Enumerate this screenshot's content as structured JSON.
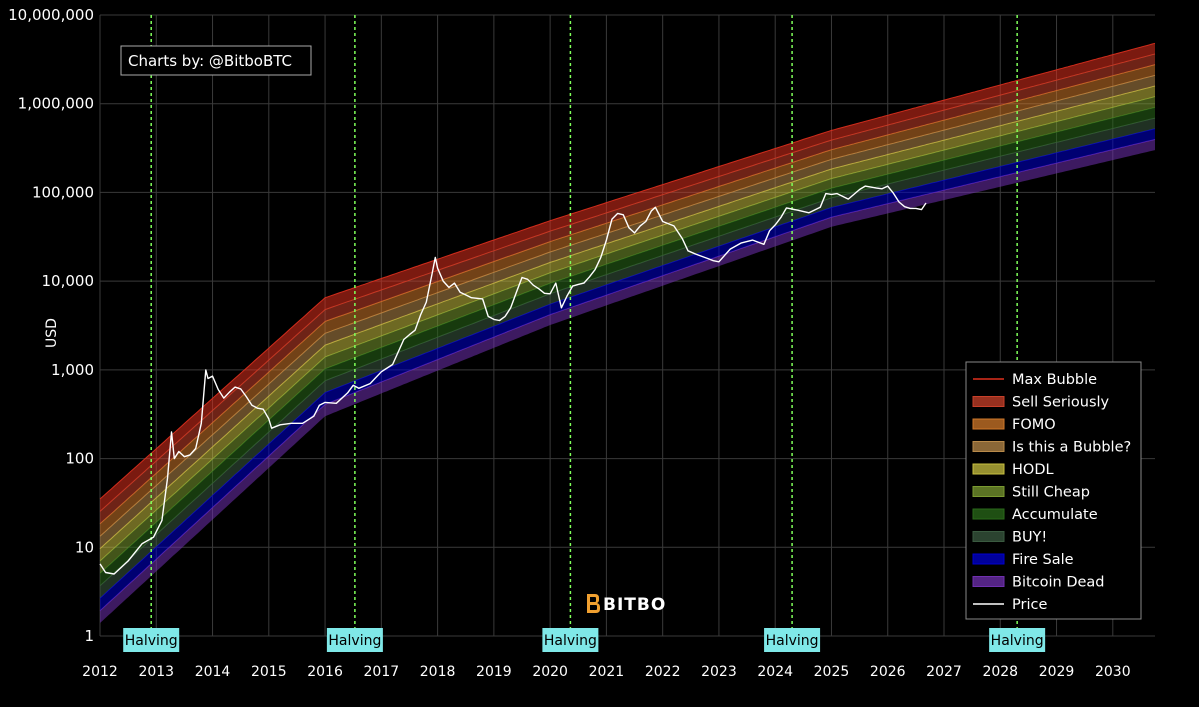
{
  "chart_data": {
    "type": "area",
    "title": "",
    "ylabel": "USD",
    "xlabel": "",
    "yscale": "log",
    "ylim": [
      1,
      10000000
    ],
    "xlim": [
      2012,
      2030.75
    ],
    "y_ticks": [
      {
        "value": 1,
        "label": "1"
      },
      {
        "value": 10,
        "label": "10"
      },
      {
        "value": 100,
        "label": "100"
      },
      {
        "value": 1000,
        "label": "1,000"
      },
      {
        "value": 10000,
        "label": "10,000"
      },
      {
        "value": 100000,
        "label": "100,000"
      },
      {
        "value": 1000000,
        "label": "1,000,000"
      },
      {
        "value": 10000000,
        "label": "10,000,000"
      }
    ],
    "x_ticks": [
      "2012",
      "2013",
      "2014",
      "2015",
      "2016",
      "2017",
      "2018",
      "2019",
      "2020",
      "2021",
      "2022",
      "2023",
      "2024",
      "2025",
      "2026",
      "2027",
      "2028",
      "2029",
      "2030"
    ],
    "grid": true,
    "legend_position": "bottom-right",
    "credit": "Charts by: @BitboBTC",
    "watermark": "BITBO",
    "halvings": [
      {
        "label": "Halving",
        "x": 2012.91
      },
      {
        "label": "Halving",
        "x": 2016.53
      },
      {
        "label": "Halving",
        "x": 2020.36
      },
      {
        "label": "Halving",
        "x": 2024.3
      },
      {
        "label": "Halving",
        "x": 2028.3
      }
    ],
    "bands_boundaries_sample_years": [
      2012.0,
      2016.0,
      2020.0,
      2025.0,
      2030.75
    ],
    "bands_boundaries_sample_values": [
      [
        1.4,
        300,
        3200,
        41000,
        300000
      ],
      [
        35,
        6500,
        48000,
        500000,
        4800000
      ]
    ],
    "series": [
      {
        "name": "Max Bubble",
        "color": "#e0301e"
      },
      {
        "name": "Sell Seriously",
        "color": "#c8402a"
      },
      {
        "name": "FOMO",
        "color": "#d0782a"
      },
      {
        "name": "Is this a Bubble?",
        "color": "#b88a4a"
      },
      {
        "name": "HODL",
        "color": "#c8c040"
      },
      {
        "name": "Still Cheap",
        "color": "#7a9a30"
      },
      {
        "name": "Accumulate",
        "color": "#2a6a1a"
      },
      {
        "name": "BUY!",
        "color": "#3a5a40"
      },
      {
        "name": "Fire Sale",
        "color": "#0000d0"
      },
      {
        "name": "Bitcoin Dead",
        "color": "#7030b0"
      },
      {
        "name": "Price",
        "color": "#ffffff",
        "x": [
          2012.0,
          2012.1,
          2012.25,
          2012.5,
          2012.75,
          2012.95,
          2013.1,
          2013.2,
          2013.27,
          2013.32,
          2013.4,
          2013.5,
          2013.6,
          2013.7,
          2013.8,
          2013.88,
          2013.92,
          2014.0,
          2014.1,
          2014.2,
          2014.3,
          2014.4,
          2014.5,
          2014.6,
          2014.7,
          2014.8,
          2014.9,
          2015.0,
          2015.05,
          2015.2,
          2015.4,
          2015.6,
          2015.8,
          2015.9,
          2016.0,
          2016.2,
          2016.4,
          2016.5,
          2016.6,
          2016.8,
          2017.0,
          2017.2,
          2017.4,
          2017.5,
          2017.6,
          2017.7,
          2017.8,
          2017.9,
          2017.96,
          2018.0,
          2018.1,
          2018.2,
          2018.3,
          2018.4,
          2018.5,
          2018.6,
          2018.7,
          2018.8,
          2018.9,
          2019.0,
          2019.1,
          2019.2,
          2019.3,
          2019.4,
          2019.5,
          2019.6,
          2019.7,
          2019.8,
          2019.9,
          2020.0,
          2020.1,
          2020.2,
          2020.3,
          2020.4,
          2020.5,
          2020.6,
          2020.7,
          2020.8,
          2020.9,
          2021.0,
          2021.1,
          2021.2,
          2021.3,
          2021.4,
          2021.5,
          2021.6,
          2021.7,
          2021.8,
          2021.87,
          2022.0,
          2022.2,
          2022.35,
          2022.45,
          2022.6,
          2022.8,
          2022.9,
          2023.0,
          2023.2,
          2023.4,
          2023.6,
          2023.8,
          2023.9,
          2024.0,
          2024.1,
          2024.2,
          2024.4,
          2024.6,
          2024.8,
          2024.9,
          2025.0,
          2025.1,
          2025.3,
          2025.5,
          2025.6,
          2025.8,
          2025.9,
          2026.0,
          2026.1,
          2026.2,
          2026.3,
          2026.4,
          2026.5,
          2026.6,
          2026.68
        ],
        "y": [
          6.5,
          5.2,
          5.0,
          7.0,
          11,
          13,
          20,
          60,
          200,
          100,
          120,
          105,
          110,
          130,
          250,
          1000,
          800,
          850,
          600,
          480,
          560,
          640,
          610,
          500,
          400,
          370,
          360,
          280,
          220,
          240,
          250,
          250,
          300,
          400,
          430,
          420,
          550,
          670,
          620,
          700,
          950,
          1150,
          2200,
          2500,
          2800,
          4200,
          5800,
          12000,
          18500,
          14000,
          10000,
          8500,
          9500,
          7500,
          7000,
          6500,
          6400,
          6300,
          4000,
          3700,
          3600,
          4000,
          5000,
          7500,
          11000,
          10500,
          9000,
          8200,
          7300,
          7200,
          9500,
          5000,
          6800,
          8800,
          9200,
          9500,
          11200,
          13500,
          18500,
          29000,
          50000,
          58000,
          56000,
          40000,
          35000,
          42000,
          47000,
          62000,
          68000,
          47000,
          42000,
          30000,
          22000,
          20000,
          18000,
          17000,
          16500,
          23000,
          27000,
          29000,
          26000,
          37000,
          43000,
          52000,
          67000,
          63000,
          59000,
          68000,
          97000,
          95000,
          97000,
          84000,
          108000,
          118000,
          112000,
          110000,
          118000,
          98000,
          78000,
          69000,
          66000,
          66000,
          64000,
          76000
        ]
      }
    ]
  }
}
